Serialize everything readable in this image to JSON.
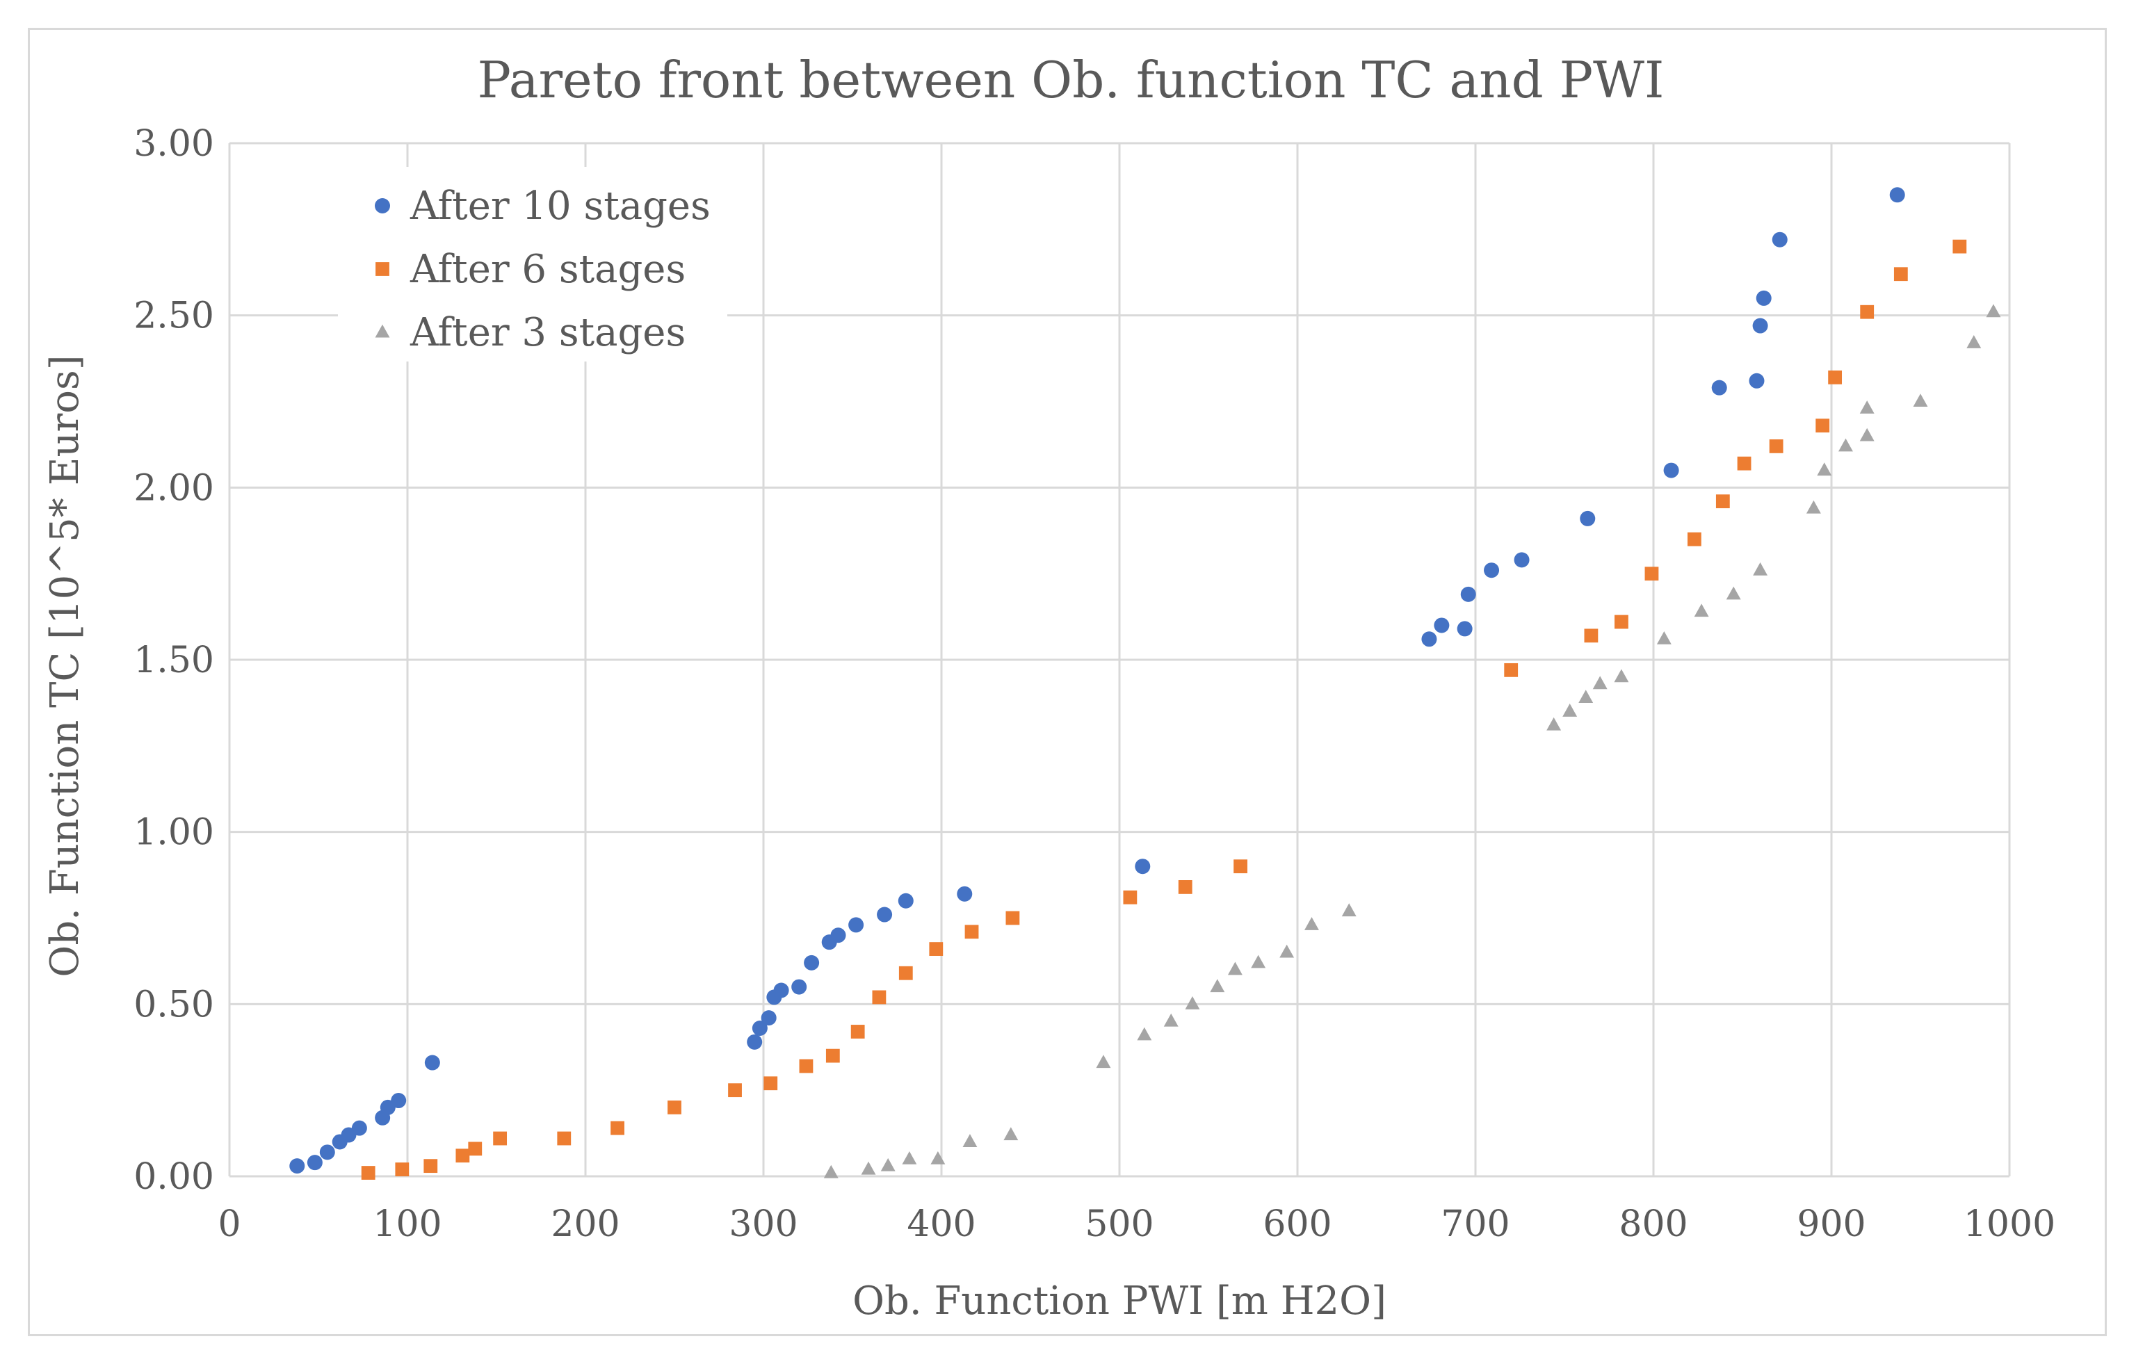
{
  "chart_data": {
    "type": "scatter",
    "title": "Pareto front between Ob. function TC and PWI",
    "xlabel": "Ob. Function  PWI [m H2O]",
    "ylabel": "Ob. Function  TC [10^5* Euros]",
    "xlim": [
      0,
      1000
    ],
    "ylim": [
      0,
      3
    ],
    "x_ticks": [
      "0",
      "100",
      "200",
      "300",
      "400",
      "500",
      "600",
      "700",
      "800",
      "900",
      "1000"
    ],
    "y_ticks": [
      "0.00",
      "0.50",
      "1.00",
      "1.50",
      "2.00",
      "2.50",
      "3.00"
    ],
    "grid": true,
    "legend_position": "top-left",
    "series": [
      {
        "name": "After 10 stages",
        "marker": "circle",
        "color": "#4472c4",
        "points": [
          [
            38,
            0.03
          ],
          [
            48,
            0.04
          ],
          [
            55,
            0.07
          ],
          [
            62,
            0.1
          ],
          [
            67,
            0.12
          ],
          [
            73,
            0.14
          ],
          [
            86,
            0.17
          ],
          [
            89,
            0.2
          ],
          [
            95,
            0.22
          ],
          [
            114,
            0.33
          ],
          [
            295,
            0.39
          ],
          [
            298,
            0.43
          ],
          [
            303,
            0.46
          ],
          [
            306,
            0.52
          ],
          [
            310,
            0.54
          ],
          [
            320,
            0.55
          ],
          [
            327,
            0.62
          ],
          [
            337,
            0.68
          ],
          [
            342,
            0.7
          ],
          [
            352,
            0.73
          ],
          [
            368,
            0.76
          ],
          [
            380,
            0.8
          ],
          [
            413,
            0.82
          ],
          [
            513,
            0.9
          ],
          [
            674,
            1.56
          ],
          [
            681,
            1.6
          ],
          [
            694,
            1.59
          ],
          [
            696,
            1.69
          ],
          [
            709,
            1.76
          ],
          [
            726,
            1.79
          ],
          [
            763,
            1.91
          ],
          [
            810,
            2.05
          ],
          [
            837,
            2.29
          ],
          [
            858,
            2.31
          ],
          [
            860,
            2.47
          ],
          [
            862,
            2.55
          ],
          [
            871,
            2.72
          ],
          [
            937,
            2.85
          ]
        ]
      },
      {
        "name": "After 6 stages",
        "marker": "square",
        "color": "#ed7d31",
        "points": [
          [
            78,
            0.01
          ],
          [
            97,
            0.02
          ],
          [
            113,
            0.03
          ],
          [
            131,
            0.06
          ],
          [
            138,
            0.08
          ],
          [
            152,
            0.11
          ],
          [
            188,
            0.11
          ],
          [
            218,
            0.14
          ],
          [
            250,
            0.2
          ],
          [
            284,
            0.25
          ],
          [
            304,
            0.27
          ],
          [
            324,
            0.32
          ],
          [
            339,
            0.35
          ],
          [
            353,
            0.42
          ],
          [
            365,
            0.52
          ],
          [
            380,
            0.59
          ],
          [
            397,
            0.66
          ],
          [
            417,
            0.71
          ],
          [
            440,
            0.75
          ],
          [
            506,
            0.81
          ],
          [
            537,
            0.84
          ],
          [
            568,
            0.9
          ],
          [
            720,
            1.47
          ],
          [
            765,
            1.57
          ],
          [
            782,
            1.61
          ],
          [
            799,
            1.75
          ],
          [
            823,
            1.85
          ],
          [
            839,
            1.96
          ],
          [
            851,
            2.07
          ],
          [
            869,
            2.12
          ],
          [
            895,
            2.18
          ],
          [
            902,
            2.32
          ],
          [
            920,
            2.51
          ],
          [
            939,
            2.62
          ],
          [
            972,
            2.7
          ]
        ]
      },
      {
        "name": "After 3 stages",
        "marker": "triangle",
        "color": "#a5a5a5",
        "points": [
          [
            338,
            0.01
          ],
          [
            359,
            0.02
          ],
          [
            370,
            0.03
          ],
          [
            382,
            0.05
          ],
          [
            398,
            0.05
          ],
          [
            416,
            0.1
          ],
          [
            439,
            0.12
          ],
          [
            491,
            0.33
          ],
          [
            514,
            0.41
          ],
          [
            529,
            0.45
          ],
          [
            541,
            0.5
          ],
          [
            555,
            0.55
          ],
          [
            565,
            0.6
          ],
          [
            578,
            0.62
          ],
          [
            594,
            0.65
          ],
          [
            608,
            0.73
          ],
          [
            629,
            0.77
          ],
          [
            744,
            1.31
          ],
          [
            753,
            1.35
          ],
          [
            762,
            1.39
          ],
          [
            770,
            1.43
          ],
          [
            782,
            1.45
          ],
          [
            806,
            1.56
          ],
          [
            827,
            1.64
          ],
          [
            845,
            1.69
          ],
          [
            860,
            1.76
          ],
          [
            890,
            1.94
          ],
          [
            896,
            2.05
          ],
          [
            908,
            2.12
          ],
          [
            920,
            2.15
          ],
          [
            920,
            2.23
          ],
          [
            950,
            2.25
          ],
          [
            980,
            2.42
          ],
          [
            991,
            2.51
          ]
        ]
      }
    ]
  }
}
